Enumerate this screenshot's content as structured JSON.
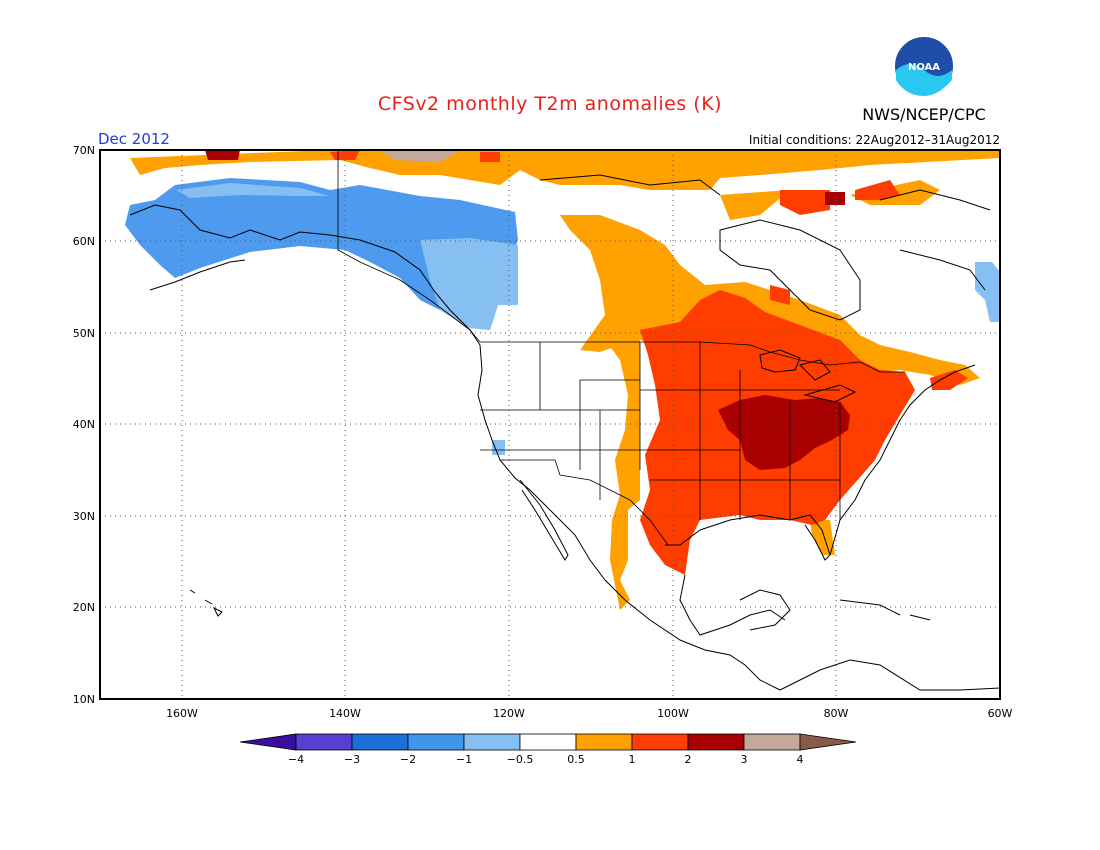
{
  "header": {
    "title": "CFSv2 monthly T2m anomalies (K)",
    "month": "Dec 2012",
    "agency": "NWS/NCEP/CPC",
    "initial_conditions": "Initial conditions: 22Aug2012–31Aug2012",
    "logo_text": "NOAA"
  },
  "axes": {
    "lat_labels": [
      "70N",
      "60N",
      "50N",
      "40N",
      "30N",
      "20N",
      "10N"
    ],
    "lon_labels": [
      "160W",
      "140W",
      "120W",
      "100W",
      "80W",
      "60W"
    ]
  },
  "colorbar": {
    "labels": [
      "−4",
      "−3",
      "−2",
      "−1",
      "−0.5",
      "0.5",
      "1",
      "2",
      "3",
      "4"
    ],
    "colors": [
      "#3a0fa0",
      "#5540d0",
      "#1d6fd8",
      "#3d97ea",
      "#86bff2",
      "#ffffff",
      "#ffa100",
      "#ff3d00",
      "#a80000",
      "#c4a89c",
      "#8a5a48"
    ]
  },
  "anomaly_colors": {
    "cold_1": "#4d9aee",
    "cold_05": "#86bff2",
    "warm_05": "#ffa100",
    "warm_1": "#ff3d00",
    "warm_2": "#a80000",
    "warm_3": "#c4a89c"
  }
}
